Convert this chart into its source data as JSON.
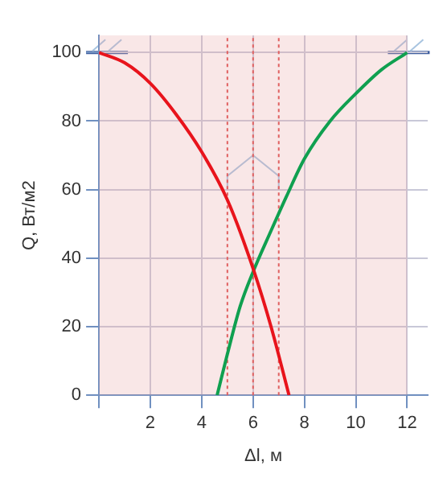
{
  "chart_data": {
    "type": "line",
    "xlabel": "Δl, м",
    "ylabel": "Q, Вт/м2",
    "xlim": [
      0,
      12.8
    ],
    "xticks": [
      {
        "value": 0,
        "label": null
      },
      2,
      4,
      6,
      8,
      10,
      12
    ],
    "ylim": [
      0,
      105
    ],
    "yticks": [
      0,
      20,
      40,
      60,
      80,
      100
    ],
    "grid": true,
    "marker": "none",
    "line_style": "solid",
    "ref_lines": [
      {
        "axis": "x",
        "value": 5,
        "color": "#e06060",
        "line_style": "dotted"
      },
      {
        "axis": "x",
        "value": 6,
        "color": "#e06060",
        "line_style": "dotted"
      },
      {
        "axis": "x",
        "value": 7,
        "color": "#e06060",
        "line_style": "dotted"
      }
    ],
    "bands": [
      {
        "axis": "x",
        "from": 0,
        "to": 12,
        "color": "#e6a0a0"
      }
    ],
    "series": [
      {
        "color": "#e8141c",
        "x": [
          0,
          1,
          2,
          3,
          4,
          5,
          6,
          6.7,
          7.4
        ],
        "values": [
          100,
          97,
          91,
          82,
          71,
          57,
          37,
          20,
          0
        ]
      },
      {
        "color": "#10a050",
        "x": [
          4.6,
          5,
          5.5,
          6,
          6.7,
          7.3,
          8,
          9,
          10,
          11,
          12
        ],
        "values": [
          0,
          12,
          26,
          36,
          48,
          58,
          69,
          80,
          88,
          95,
          100
        ]
      }
    ]
  }
}
